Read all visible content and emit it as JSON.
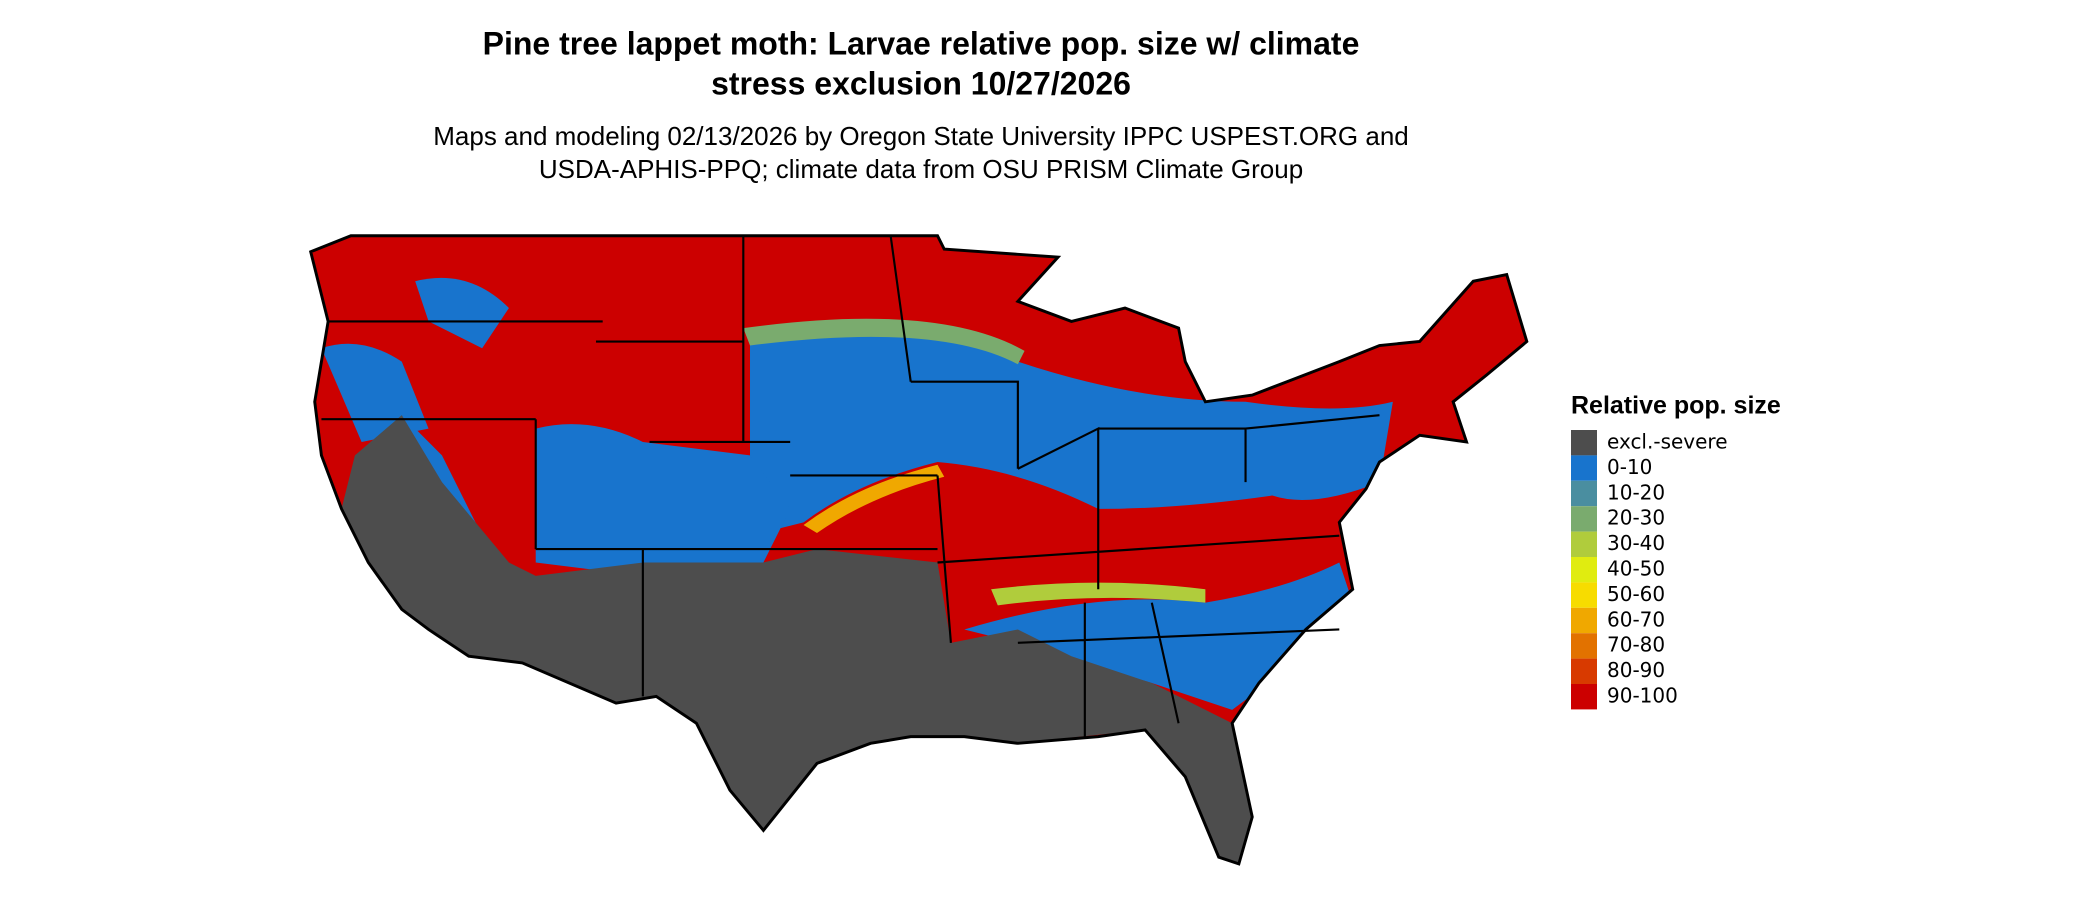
{
  "title": [
    "Pine tree lappet moth: Larvae relative pop. size w/ climate",
    "stress exclusion 10/27/2026"
  ],
  "subtitle": [
    "Maps and modeling 02/13/2026 by Oregon State University IPPC USPEST.ORG and",
    "USDA-APHIS-PPQ; climate data from OSU PRISM Climate Group"
  ],
  "legend": {
    "title": "Relative pop. size",
    "items": [
      {
        "label": "excl.-severe",
        "color": "#4d4d4d"
      },
      {
        "label": "0-10",
        "color": "#1874cd"
      },
      {
        "label": "10-20",
        "color": "#4a8ea0"
      },
      {
        "label": "20-30",
        "color": "#7aab6e"
      },
      {
        "label": "30-40",
        "color": "#b0cc3c"
      },
      {
        "label": "40-50",
        "color": "#e0ec10"
      },
      {
        "label": "50-60",
        "color": "#f7dc00"
      },
      {
        "label": "60-70",
        "color": "#f0a800"
      },
      {
        "label": "70-80",
        "color": "#e27200"
      },
      {
        "label": "80-90",
        "color": "#d83a00"
      },
      {
        "label": "90-100",
        "color": "#cc0000"
      }
    ]
  }
}
